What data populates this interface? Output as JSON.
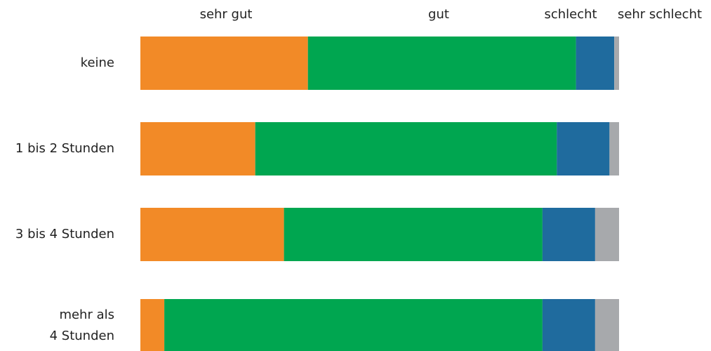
{
  "chart_data": {
    "type": "stacked-bar-horizontal",
    "categories": [
      "keine",
      "1 bis 2 Stunden",
      "3 bis 4 Stunden",
      "mehr als\n4 Stunden"
    ],
    "series": [
      {
        "name": "sehr gut",
        "color": "#f28a27",
        "values": [
          35,
          24,
          30,
          5
        ]
      },
      {
        "name": "gut",
        "color": "#00a650",
        "values": [
          56,
          63,
          54,
          79
        ]
      },
      {
        "name": "schlecht",
        "color": "#1f6b9e",
        "values": [
          8,
          11,
          11,
          11
        ]
      },
      {
        "name": "sehr schlecht",
        "color": "#a7a9ac",
        "values": [
          1,
          2,
          5,
          5
        ]
      }
    ],
    "xlim": [
      0,
      100
    ]
  }
}
